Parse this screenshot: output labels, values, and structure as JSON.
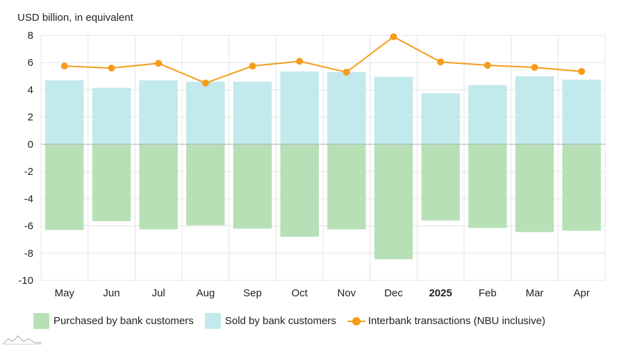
{
  "ylabel": "USD billion, in equivalent",
  "colors": {
    "purchased": "#b7e0b7",
    "sold": "#c2e9eb",
    "interbank": "#f59c1a",
    "grid": "#e4e4e4",
    "zero": "#b0b0b0"
  },
  "legend": {
    "purchased": "Purchased by bank customers",
    "sold": "Sold by bank customers",
    "interbank": "Interbank transactions (NBU inclusive)"
  },
  "chart_data": {
    "type": "bar",
    "categories": [
      "May",
      "Jun",
      "Jul",
      "Aug",
      "Sep",
      "Oct",
      "Nov",
      "Dec",
      "2025",
      "Feb",
      "Mar",
      "Apr"
    ],
    "bold_categories": [
      "2025"
    ],
    "ylim": [
      -10,
      8
    ],
    "yticks": [
      8,
      6,
      4,
      2,
      0,
      -2,
      -4,
      -6,
      -8,
      -10
    ],
    "grid": true,
    "legend_position": "bottom",
    "series": [
      {
        "name": "Sold by bank customers",
        "kind": "bar",
        "values": [
          4.7,
          4.15,
          4.7,
          4.6,
          4.6,
          5.35,
          5.3,
          4.95,
          3.75,
          4.35,
          5.0,
          4.75
        ]
      },
      {
        "name": "Purchased by bank customers",
        "kind": "bar",
        "values": [
          -6.3,
          -5.65,
          -6.25,
          -5.95,
          -6.2,
          -6.8,
          -6.25,
          -8.45,
          -5.6,
          -6.15,
          -6.45,
          -6.35
        ]
      },
      {
        "name": "Interbank transactions (NBU inclusive)",
        "kind": "line",
        "values": [
          5.75,
          5.6,
          5.95,
          4.5,
          5.75,
          6.1,
          5.3,
          7.9,
          6.05,
          5.8,
          5.65,
          5.35
        ]
      }
    ]
  }
}
